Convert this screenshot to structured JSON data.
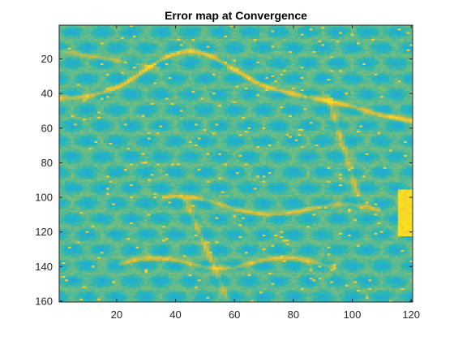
{
  "chart_data": {
    "type": "heatmap",
    "title": "Error map at Convergence",
    "xlabel": "",
    "ylabel": "",
    "xlim": [
      0.5,
      120.5
    ],
    "ylim": [
      0.5,
      160.5
    ],
    "y_direction": "reversed",
    "grid": false,
    "legend": "none",
    "colorbar": false,
    "colormap": "parula",
    "colormap_stops": [
      "#2f9fd8",
      "#1fb0d0",
      "#2ab5b3",
      "#55ba95",
      "#8cbd6c",
      "#c7bd46",
      "#f2c437",
      "#f8e11f"
    ],
    "matrix_rows": 160,
    "matrix_cols": 120,
    "xticks": [
      20,
      40,
      60,
      80,
      100,
      120
    ],
    "yticks": [
      20,
      40,
      60,
      80,
      100,
      120,
      140,
      160
    ],
    "xtick_labels": [
      "20",
      "40",
      "60",
      "80",
      "100",
      "120"
    ],
    "ytick_labels": [
      "20",
      "40",
      "60",
      "80",
      "100",
      "120",
      "140",
      "160"
    ],
    "description": ""
  }
}
